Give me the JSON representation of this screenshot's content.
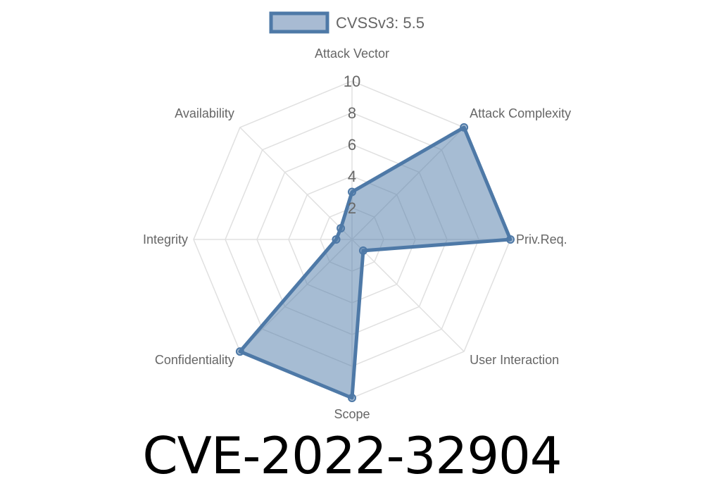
{
  "title": "CVE-2022-32904",
  "chart_data": {
    "type": "radar",
    "axes": [
      "Attack Vector",
      "Attack Complexity",
      "Priv.Req.",
      "User Interaction",
      "Scope",
      "Confidentiality",
      "Integrity",
      "Availability"
    ],
    "series": [
      {
        "name": "CVSSv3: 5.5",
        "values": [
          3,
          10,
          10,
          1,
          10,
          10,
          1,
          1
        ]
      }
    ],
    "rlim": [
      0,
      10
    ],
    "ticks": [
      "2",
      "4",
      "6",
      "8",
      "10"
    ],
    "grid": true,
    "legend": "top",
    "colors": {
      "line": "#4e79a7",
      "fill": "rgba(78,121,167,0.5)",
      "grid": "#e0e0e0"
    }
  }
}
